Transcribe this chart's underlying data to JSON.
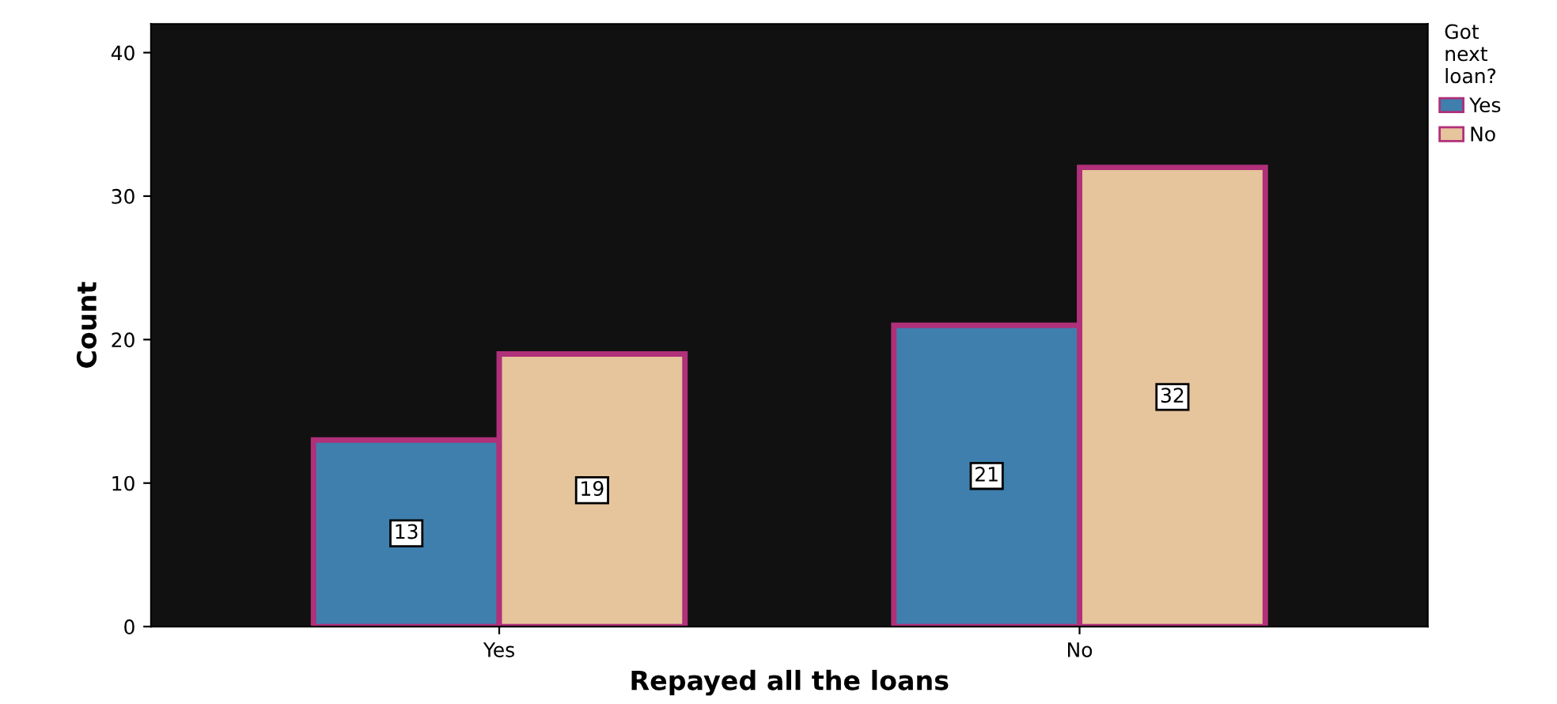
{
  "chart_data": {
    "type": "bar",
    "xlabel": "Repayed all the loans",
    "ylabel": "Count",
    "legend_title": "Got\nnext\nloan?",
    "categories": [
      "Yes",
      "No"
    ],
    "series": [
      {
        "name": "Yes",
        "color": "#3f7fae",
        "values": [
          13,
          21
        ]
      },
      {
        "name": "No",
        "color": "#e6c49c",
        "values": [
          19,
          32
        ]
      }
    ],
    "ylim": [
      0,
      42
    ],
    "yticks": [
      0,
      10,
      20,
      30,
      40
    ],
    "data_labels": true,
    "legend": "top right",
    "grid": false
  }
}
